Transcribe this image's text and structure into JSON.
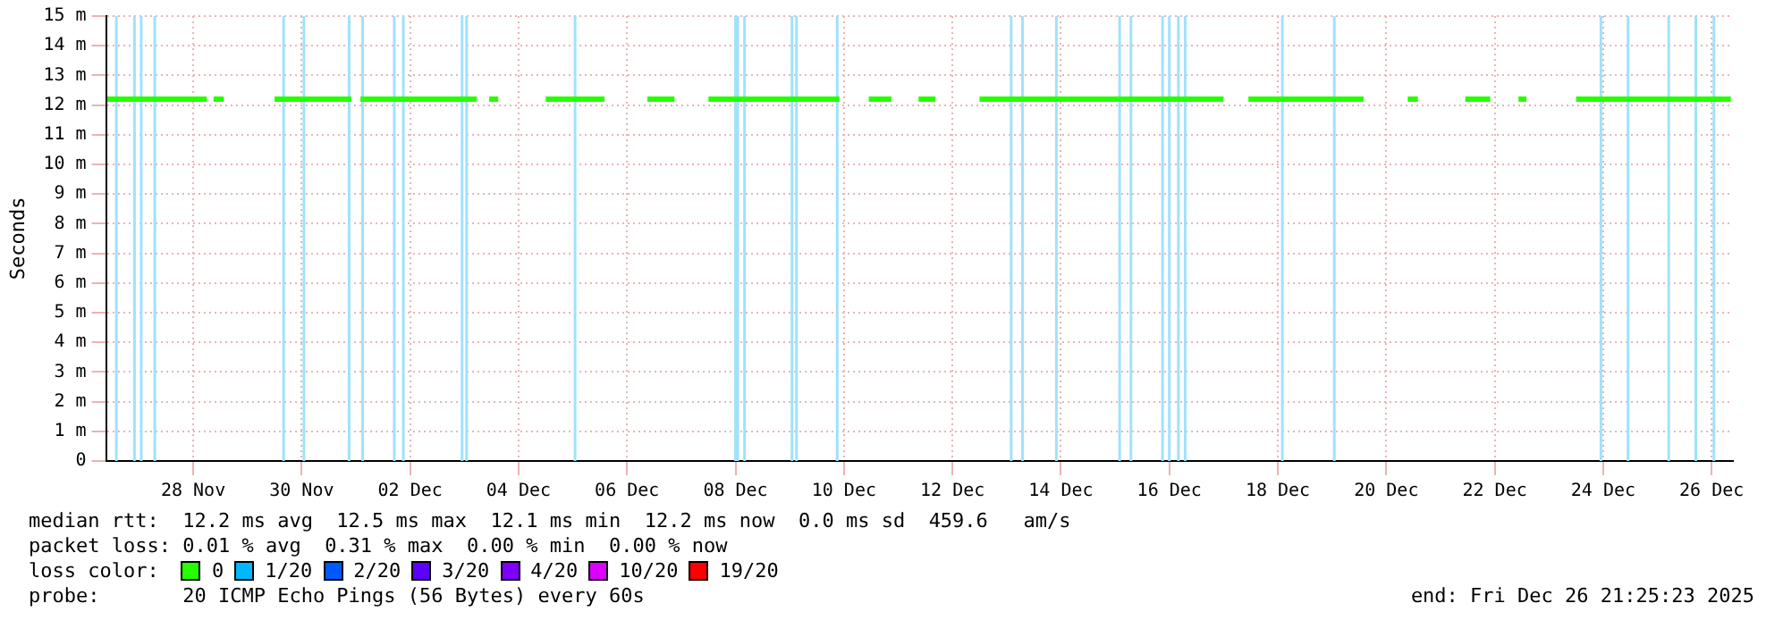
{
  "chart_data": {
    "type": "line",
    "ylabel": "Seconds",
    "legend_title": "loss color:",
    "legend": "bottom",
    "grid": true,
    "marker": "none",
    "line_style": "solid",
    "xlim": [
      "2025-11-26T21:25",
      "2025-12-26T21:25"
    ],
    "xticks": [
      {
        "value": "2025-11-28T12:00",
        "label": "28 Nov"
      },
      {
        "value": "2025-11-30T12:00",
        "label": "30 Nov"
      },
      {
        "value": "2025-12-02T12:00",
        "label": "02 Dec"
      },
      {
        "value": "2025-12-04T12:00",
        "label": "04 Dec"
      },
      {
        "value": "2025-12-06T12:00",
        "label": "06 Dec"
      },
      {
        "value": "2025-12-08T12:00",
        "label": "08 Dec"
      },
      {
        "value": "2025-12-10T12:00",
        "label": "10 Dec"
      },
      {
        "value": "2025-12-12T12:00",
        "label": "12 Dec"
      },
      {
        "value": "2025-12-14T12:00",
        "label": "14 Dec"
      },
      {
        "value": "2025-12-16T12:00",
        "label": "16 Dec"
      },
      {
        "value": "2025-12-18T12:00",
        "label": "18 Dec"
      },
      {
        "value": "2025-12-20T12:00",
        "label": "20 Dec"
      },
      {
        "value": "2025-12-22T12:00",
        "label": "22 Dec"
      },
      {
        "value": "2025-12-24T12:00",
        "label": "24 Dec"
      },
      {
        "value": "2025-12-26T12:00",
        "label": "26 Dec"
      }
    ],
    "ylim": [
      0,
      15
    ],
    "yticks": [
      0,
      {
        "value": 1,
        "label": "1 m"
      },
      {
        "value": 2,
        "label": "2 m"
      },
      {
        "value": 3,
        "label": "3 m"
      },
      {
        "value": 4,
        "label": "4 m"
      },
      {
        "value": 5,
        "label": "5 m"
      },
      {
        "value": 6,
        "label": "6 m"
      },
      {
        "value": 7,
        "label": "7 m"
      },
      {
        "value": 8,
        "label": "8 m"
      },
      {
        "value": 9,
        "label": "9 m"
      },
      {
        "value": 10,
        "label": "10 m"
      },
      {
        "value": 11,
        "label": "11 m"
      },
      {
        "value": 12,
        "label": "12 m"
      },
      {
        "value": 13,
        "label": "13 m"
      },
      {
        "value": 14,
        "label": "14 m"
      },
      {
        "value": 15,
        "label": "15 m"
      }
    ],
    "series": [
      {
        "name": "0",
        "color": "#26ff00",
        "x": [
          "2025-11-26T22:00",
          "2025-11-28T18:00",
          "2025-11-28T19:00",
          "2025-11-28T21:00",
          "2025-11-29T01:30",
          "2025-11-29T03:00",
          "2025-11-30T00:00",
          "2025-12-01T10:00",
          "2025-12-01T11:00",
          "2025-12-01T14:00",
          "2025-12-03T17:30",
          "2025-12-03T19:00",
          "2025-12-03T23:00",
          "2025-12-04T03:00",
          "2025-12-04T05:00",
          "2025-12-05T00:00",
          "2025-12-06T02:00",
          "2025-12-06T04:00",
          "2025-12-06T21:00",
          "2025-12-07T09:00",
          "2025-12-07T11:00",
          "2025-12-08T00:00",
          "2025-12-10T10:00",
          "2025-12-10T12:00",
          "2025-12-10T23:00",
          "2025-12-11T09:00",
          "2025-12-11T11:00",
          "2025-12-11T21:00",
          "2025-12-12T04:30",
          "2025-12-12T06:00",
          "2025-12-13T00:00",
          "2025-12-17T12:00",
          "2025-12-17T14:00",
          "2025-12-17T23:00",
          "2025-12-20T02:00",
          "2025-12-20T04:00",
          "2025-12-20T21:30",
          "2025-12-21T02:00",
          "2025-12-21T04:00",
          "2025-12-21T23:00",
          "2025-12-22T10:00",
          "2025-12-22T12:00",
          "2025-12-22T22:30",
          "2025-12-23T02:00",
          "2025-12-23T04:00",
          "2025-12-24T00:00",
          "2025-12-26T20:30"
        ],
        "values": [
          12.2,
          12.2,
          null,
          12.2,
          12.2,
          null,
          12.2,
          12.2,
          null,
          12.2,
          12.2,
          null,
          12.2,
          12.2,
          null,
          12.2,
          12.2,
          null,
          12.2,
          12.2,
          null,
          12.2,
          12.2,
          null,
          12.2,
          12.2,
          null,
          12.2,
          12.2,
          null,
          12.2,
          12.2,
          null,
          12.2,
          12.2,
          null,
          12.2,
          12.2,
          null,
          12.2,
          12.2,
          null,
          12.2,
          12.2,
          null,
          12.2,
          12.2
        ]
      },
      {
        "name": "1/20",
        "color": "#00b8ff"
      },
      {
        "name": "2/20",
        "color": "#0059ff"
      },
      {
        "name": "3/20",
        "color": "#5e00ff"
      },
      {
        "name": "4/20",
        "color": "#7e00ff"
      },
      {
        "name": "10/20",
        "color": "#dd00ff"
      },
      {
        "name": "19/20",
        "color": "#ff0000"
      }
    ],
    "ref_lines": [
      {
        "axis": "x",
        "value": "2025-11-27T02:00",
        "color": "#9fe2fb"
      },
      {
        "axis": "x",
        "value": "2025-11-27T10:00",
        "color": "#9fe2fb"
      },
      {
        "axis": "x",
        "value": "2025-11-27T13:00",
        "color": "#9fe2fb"
      },
      {
        "axis": "x",
        "value": "2025-11-27T19:00",
        "color": "#9fe2fb"
      },
      {
        "axis": "x",
        "value": "2025-11-30T04:00",
        "color": "#9fe2fb"
      },
      {
        "axis": "x",
        "value": "2025-11-30T13:00",
        "color": "#9fe2fb"
      },
      {
        "axis": "x",
        "value": "2025-12-01T09:00",
        "color": "#9fe2fb"
      },
      {
        "axis": "x",
        "value": "2025-12-01T15:00",
        "color": "#9fe2fb"
      },
      {
        "axis": "x",
        "value": "2025-12-02T05:00",
        "color": "#9fe2fb"
      },
      {
        "axis": "x",
        "value": "2025-12-02T09:00",
        "color": "#9fe2fb"
      },
      {
        "axis": "x",
        "value": "2025-12-03T11:00",
        "color": "#9fe2fb"
      },
      {
        "axis": "x",
        "value": "2025-12-03T13:00",
        "color": "#9fe2fb"
      },
      {
        "axis": "x",
        "value": "2025-12-05T13:00",
        "color": "#9fe2fb"
      },
      {
        "axis": "x",
        "value": "2025-12-08T12:00",
        "color": "#9fe2fb"
      },
      {
        "axis": "x",
        "value": "2025-12-08T13:00",
        "color": "#9fe2fb"
      },
      {
        "axis": "x",
        "value": "2025-12-08T16:00",
        "color": "#9fe2fb"
      },
      {
        "axis": "x",
        "value": "2025-12-09T13:00",
        "color": "#9fe2fb"
      },
      {
        "axis": "x",
        "value": "2025-12-09T15:00",
        "color": "#9fe2fb"
      },
      {
        "axis": "x",
        "value": "2025-12-10T09:00",
        "color": "#9fe2fb"
      },
      {
        "axis": "x",
        "value": "2025-12-13T14:00",
        "color": "#9fe2fb"
      },
      {
        "axis": "x",
        "value": "2025-12-13T19:00",
        "color": "#9fe2fb"
      },
      {
        "axis": "x",
        "value": "2025-12-14T10:00",
        "color": "#9fe2fb"
      },
      {
        "axis": "x",
        "value": "2025-12-15T14:00",
        "color": "#9fe2fb"
      },
      {
        "axis": "x",
        "value": "2025-12-15T19:00",
        "color": "#9fe2fb"
      },
      {
        "axis": "x",
        "value": "2025-12-16T09:00",
        "color": "#9fe2fb"
      },
      {
        "axis": "x",
        "value": "2025-12-16T12:00",
        "color": "#9fe2fb"
      },
      {
        "axis": "x",
        "value": "2025-12-16T16:00",
        "color": "#9fe2fb"
      },
      {
        "axis": "x",
        "value": "2025-12-16T19:00",
        "color": "#9fe2fb"
      },
      {
        "axis": "x",
        "value": "2025-12-18T14:00",
        "color": "#9fe2fb"
      },
      {
        "axis": "x",
        "value": "2025-12-19T13:00",
        "color": "#9fe2fb"
      },
      {
        "axis": "x",
        "value": "2025-12-24T11:00",
        "color": "#9fe2fb"
      },
      {
        "axis": "x",
        "value": "2025-12-24T23:00",
        "color": "#9fe2fb"
      },
      {
        "axis": "x",
        "value": "2025-12-25T17:00",
        "color": "#9fe2fb"
      },
      {
        "axis": "x",
        "value": "2025-12-26T05:00",
        "color": "#9fe2fb"
      },
      {
        "axis": "x",
        "value": "2025-12-26T13:00",
        "color": "#9fe2fb"
      }
    ],
    "annotations": [
      "median rtt:  12.2 ms avg  12.5 ms max  12.1 ms min  12.2 ms now  0.0 ms sd  459.6   am/s",
      "packet loss: 0.01 % avg  0.31 % max  0.00 % min  0.00 % now",
      "probe:       20 ICMP Echo Pings (56 Bytes) every 60s",
      "end: Fri Dec 26 21:25:23 2025"
    ]
  }
}
